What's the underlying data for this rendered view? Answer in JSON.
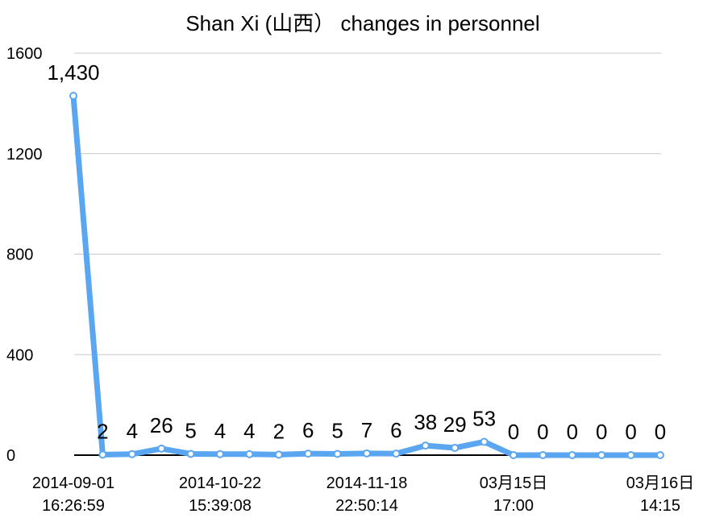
{
  "chart_data": {
    "type": "line",
    "title": "Shan Xi (山西） changes in personnel",
    "categories": [
      "2014-09-01\n16:26:59",
      null,
      null,
      null,
      null,
      "2014-10-22\n15:39:08",
      null,
      null,
      null,
      null,
      "2014-11-18\n22:50:14",
      null,
      null,
      null,
      null,
      "03月15日\n17:00",
      null,
      null,
      null,
      null,
      "03月16日\n14:15"
    ],
    "series": [
      {
        "name": "changes in personnel",
        "color": "#5aa6f0",
        "values": [
          1430,
          2,
          4,
          26,
          5,
          4,
          4,
          2,
          6,
          5,
          7,
          6,
          38,
          29,
          53,
          0,
          0,
          0,
          0,
          0,
          0
        ],
        "value_labels": [
          "1,430",
          "2",
          "4",
          "26",
          "5",
          "4",
          "4",
          "2",
          "6",
          "5",
          "7",
          "6",
          "38",
          "29",
          "53",
          "0",
          "0",
          "0",
          "0",
          "0",
          "0"
        ]
      }
    ],
    "ylim": [
      0,
      1600
    ],
    "yticks": [
      0,
      400,
      800,
      1200,
      1600
    ],
    "grid": true
  }
}
